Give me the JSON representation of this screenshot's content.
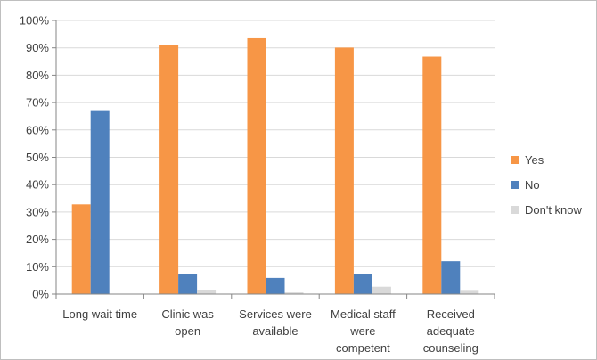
{
  "chart_data": {
    "type": "bar",
    "categories": [
      [
        "Long wait time"
      ],
      [
        "Clinic was",
        "open"
      ],
      [
        "Services were",
        "available"
      ],
      [
        "Medical staff",
        "were",
        "competent"
      ],
      [
        "Received",
        "adequate",
        "counseling"
      ]
    ],
    "series": [
      {
        "name": "Yes",
        "color": "#f79646",
        "values": [
          32.8,
          91.2,
          93.5,
          90.1,
          86.8
        ]
      },
      {
        "name": "No",
        "color": "#4f81bd",
        "values": [
          66.9,
          7.4,
          5.9,
          7.3,
          12.0
        ]
      },
      {
        "name": "Don't know",
        "color": "#d9d9d9",
        "values": [
          0.0,
          1.4,
          0.6,
          2.7,
          1.2
        ]
      }
    ],
    "y_ticks": [
      "0%",
      "10%",
      "20%",
      "30%",
      "40%",
      "50%",
      "60%",
      "70%",
      "80%",
      "90%",
      "100%"
    ],
    "ylim": [
      0,
      100
    ],
    "grid": true,
    "legend_position": "right"
  }
}
